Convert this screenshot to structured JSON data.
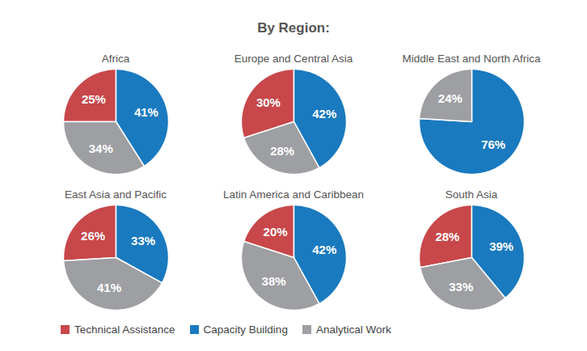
{
  "title": "By Region:",
  "chart_data": [
    {
      "type": "pie",
      "title": "Africa",
      "categories": [
        "Technical Assistance",
        "Capacity Building",
        "Analytical Work"
      ],
      "values": [
        25,
        41,
        34
      ],
      "value_labels": [
        "25%",
        "41%",
        "34%"
      ],
      "colors": [
        "#c8474a",
        "#1a7abf",
        "#9e9fa3"
      ],
      "data_labels": true,
      "legend": "bottom"
    },
    {
      "type": "pie",
      "title": "Europe and Central Asia",
      "categories": [
        "Technical Assistance",
        "Capacity Building",
        "Analytical Work"
      ],
      "values": [
        30,
        42,
        28
      ],
      "value_labels": [
        "30%",
        "42%",
        "28%"
      ],
      "colors": [
        "#c8474a",
        "#1a7abf",
        "#9e9fa3"
      ],
      "data_labels": true,
      "legend": "bottom"
    },
    {
      "type": "pie",
      "title": "Middle East and North Africa",
      "categories": [
        "Technical Assistance",
        "Capacity Building",
        "Analytical Work"
      ],
      "values": [
        null,
        76,
        24
      ],
      "value_labels": [
        null,
        "76%",
        "24%"
      ],
      "colors": [
        "#c8474a",
        "#1a7abf",
        "#9e9fa3"
      ],
      "data_labels": true,
      "legend": "bottom"
    },
    {
      "type": "pie",
      "title": "East Asia and Pacific",
      "categories": [
        "Technical Assistance",
        "Capacity Building",
        "Analytical Work"
      ],
      "values": [
        26,
        33,
        41
      ],
      "value_labels": [
        "26%",
        "33%",
        "41%"
      ],
      "colors": [
        "#c8474a",
        "#1a7abf",
        "#9e9fa3"
      ],
      "data_labels": true,
      "legend": "bottom"
    },
    {
      "type": "pie",
      "title": "Latin America and Caribbean",
      "categories": [
        "Technical Assistance",
        "Capacity Building",
        "Analytical Work"
      ],
      "values": [
        20,
        42,
        38
      ],
      "value_labels": [
        "20%",
        "42%",
        "38%"
      ],
      "colors": [
        "#c8474a",
        "#1a7abf",
        "#9e9fa3"
      ],
      "data_labels": true,
      "legend": "bottom"
    },
    {
      "type": "pie",
      "title": "South Asia",
      "categories": [
        "Technical Assistance",
        "Capacity Building",
        "Analytical Work"
      ],
      "values": [
        28,
        39,
        33
      ],
      "value_labels": [
        "28%",
        "39%",
        "33%"
      ],
      "colors": [
        "#c8474a",
        "#1a7abf",
        "#9e9fa3"
      ],
      "data_labels": true,
      "legend": "bottom"
    }
  ]
}
